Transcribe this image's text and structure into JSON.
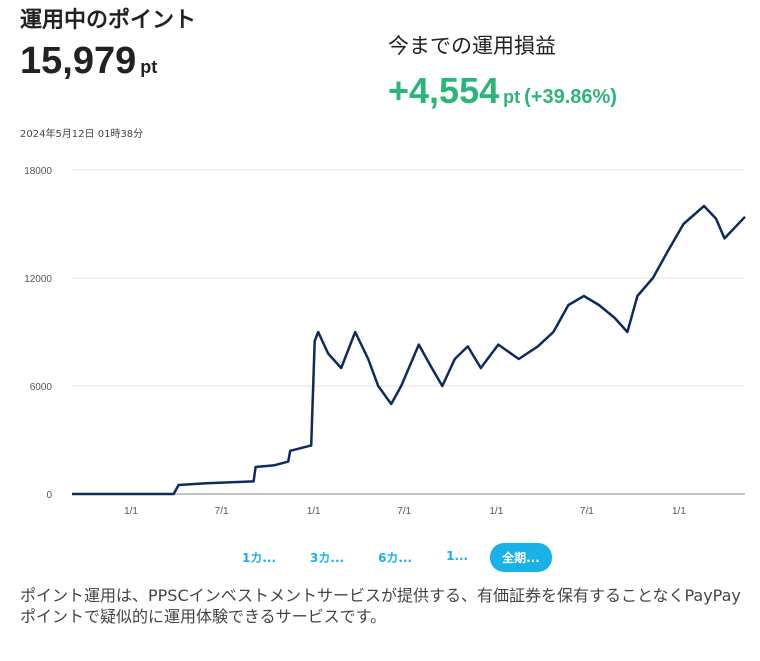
{
  "header": {
    "title": "運用中のポイント",
    "total_value": "15,979",
    "unit": "pt",
    "gain_title": "今までの運用損益",
    "gain_value": "+4,554",
    "gain_unit": "pt",
    "gain_percent": "(+39.86%)",
    "timestamp": "2024年5月12日 01時38分"
  },
  "colors": {
    "line": "#0d2b5e",
    "gain": "#2cb57a",
    "accent": "#1ab0e8"
  },
  "ranges": [
    {
      "label": "1カ...",
      "selected": false
    },
    {
      "label": "3カ...",
      "selected": false
    },
    {
      "label": "6カ...",
      "selected": false
    },
    {
      "label": "1...",
      "selected": false
    },
    {
      "label": "全期...",
      "selected": true
    }
  ],
  "description": "ポイント運用は、PPSCインベストメントサービスが提供する、有価証券を保有することなくPayPayポイントで疑似的に運用体験できるサービスです。",
  "chart_data": {
    "type": "line",
    "grid": true,
    "ylim": [
      0,
      18000
    ],
    "yticks": [
      "0",
      "6000",
      "12000",
      "18000"
    ],
    "xticks": [
      {
        "date": "2021-01-01",
        "label": "1/1"
      },
      {
        "date": "2021-07-01",
        "label": "7/1"
      },
      {
        "date": "2022-01-01",
        "label": "1/1"
      },
      {
        "date": "2022-07-01",
        "label": "7/1"
      },
      {
        "date": "2023-01-01",
        "label": "1/1"
      },
      {
        "date": "2023-07-01",
        "label": "7/1"
      },
      {
        "date": "2024-01-01",
        "label": "1/1"
      }
    ],
    "xlim": [
      "2020-09-05",
      "2024-05-12"
    ],
    "points": [
      [
        "2020-09-05",
        0
      ],
      [
        "2021-03-27",
        0
      ],
      [
        "2021-04-06",
        500
      ],
      [
        "2021-06-01",
        600
      ],
      [
        "2021-09-03",
        700
      ],
      [
        "2021-09-07",
        1500
      ],
      [
        "2021-10-15",
        1600
      ],
      [
        "2021-11-11",
        1800
      ],
      [
        "2021-11-15",
        2400
      ],
      [
        "2021-12-27",
        2700
      ],
      [
        "2022-01-03",
        8500
      ],
      [
        "2022-01-10",
        9000
      ],
      [
        "2022-01-30",
        7800
      ],
      [
        "2022-02-25",
        7000
      ],
      [
        "2022-03-25",
        9000
      ],
      [
        "2022-04-20",
        7500
      ],
      [
        "2022-05-10",
        6000
      ],
      [
        "2022-06-05",
        5000
      ],
      [
        "2022-06-25",
        6000
      ],
      [
        "2022-07-30",
        8300
      ],
      [
        "2022-08-25",
        7000
      ],
      [
        "2022-09-15",
        6000
      ],
      [
        "2022-10-10",
        7500
      ],
      [
        "2022-11-05",
        8200
      ],
      [
        "2022-12-01",
        7000
      ],
      [
        "2023-01-05",
        8300
      ],
      [
        "2023-02-15",
        7500
      ],
      [
        "2023-03-25",
        8200
      ],
      [
        "2023-04-25",
        9000
      ],
      [
        "2023-05-25",
        10500
      ],
      [
        "2023-06-25",
        11000
      ],
      [
        "2023-07-25",
        10500
      ],
      [
        "2023-08-25",
        9800
      ],
      [
        "2023-09-20",
        9000
      ],
      [
        "2023-10-10",
        11000
      ],
      [
        "2023-11-10",
        12000
      ],
      [
        "2023-12-10",
        13500
      ],
      [
        "2024-01-10",
        15000
      ],
      [
        "2024-02-20",
        16000
      ],
      [
        "2024-03-15",
        15300
      ],
      [
        "2024-04-01",
        14200
      ],
      [
        "2024-05-12",
        15400
      ]
    ]
  }
}
